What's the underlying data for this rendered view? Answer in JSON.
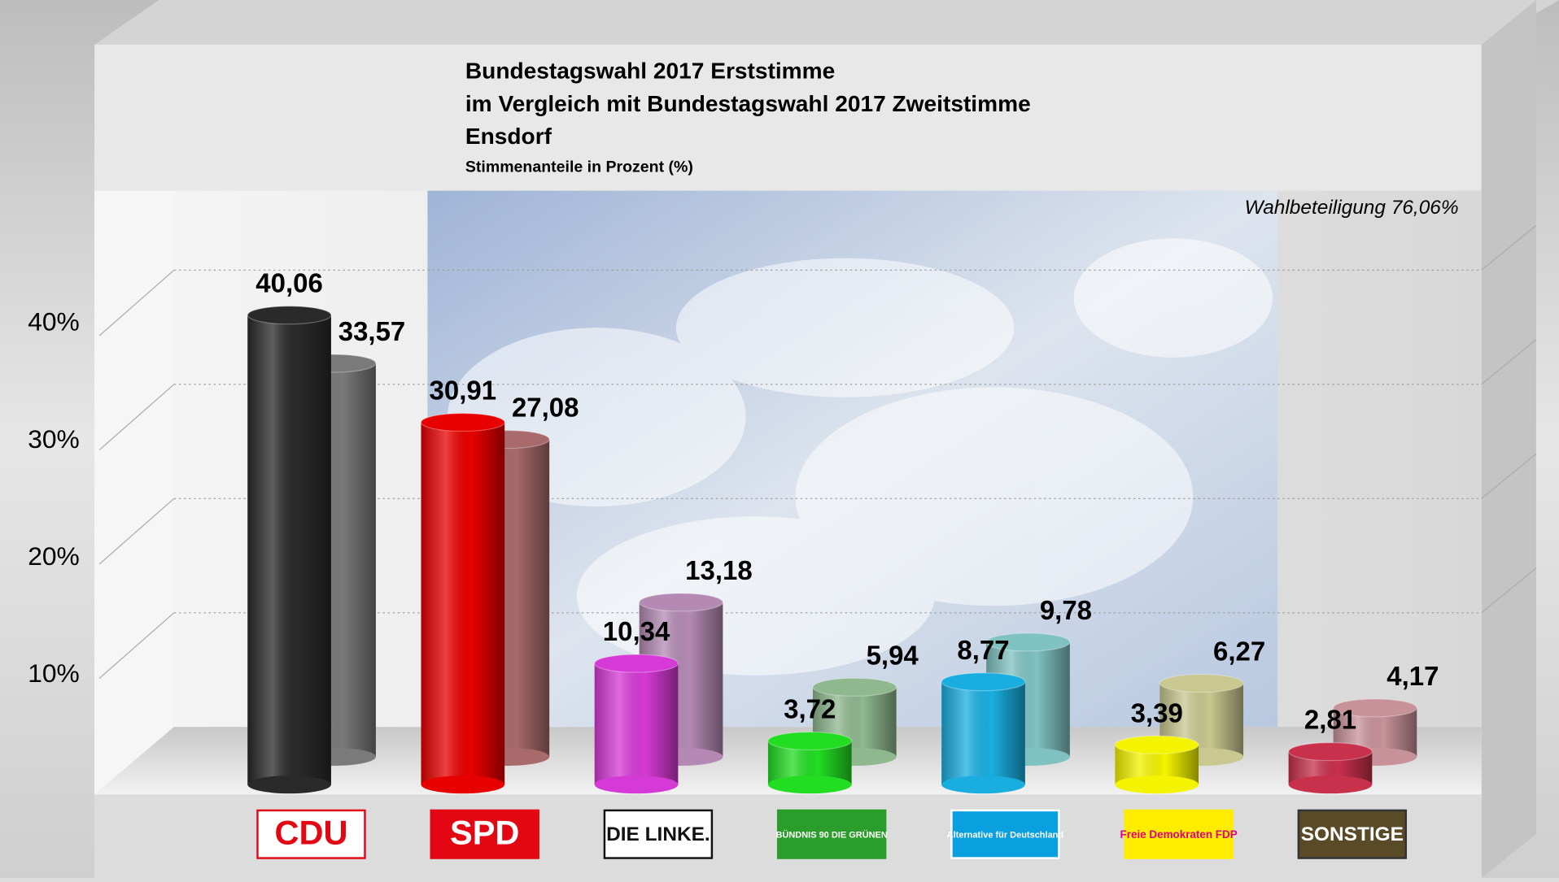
{
  "chart_data": {
    "type": "bar",
    "title": [
      "Bundestagswahl 2017 Erststimme",
      "im Vergleich mit Bundestagswahl 2017 Zweitstimme",
      "Ensdorf"
    ],
    "subtitle": "Stimmenanteile in Prozent (%)",
    "annotation": "Wahlbeteiligung 76,06%",
    "categories": [
      "CDU",
      "SPD",
      "DIE LINKE.",
      "BÜNDNIS 90 DIE GRÜNEN",
      "Alternative für Deutschland",
      "Freie Demokraten FDP",
      "SONSTIGE"
    ],
    "series": [
      {
        "colors": [
          "#2a2a2a",
          "#e80000",
          "#d63ad6",
          "#22dd22",
          "#1aaee0",
          "#f4f400",
          "#c8304c"
        ],
        "values": [
          40.06,
          30.91,
          10.34,
          3.72,
          8.77,
          3.39,
          2.81
        ],
        "value_labels": [
          "40,06",
          "30,91",
          "10,34",
          "3,72",
          "8,77",
          "3,39",
          "2,81"
        ]
      },
      {
        "colors": [
          "#7a7a7a",
          "#a86a6a",
          "#b48ab4",
          "#8fb88f",
          "#80c2c2",
          "#c8c890",
          "#c8929a"
        ],
        "values": [
          33.57,
          27.08,
          13.18,
          5.94,
          9.78,
          6.27,
          4.17
        ],
        "value_labels": [
          "33,57",
          "27,08",
          "13,18",
          "5,94",
          "9,78",
          "6,27",
          "4,17"
        ]
      }
    ],
    "ylim": [
      0,
      50
    ],
    "yticks": [
      {
        "value": 10,
        "label": "10%"
      },
      {
        "value": 20,
        "label": "20%"
      },
      {
        "value": 30,
        "label": "30%"
      },
      {
        "value": 40,
        "label": "40%"
      }
    ],
    "grid": true
  }
}
